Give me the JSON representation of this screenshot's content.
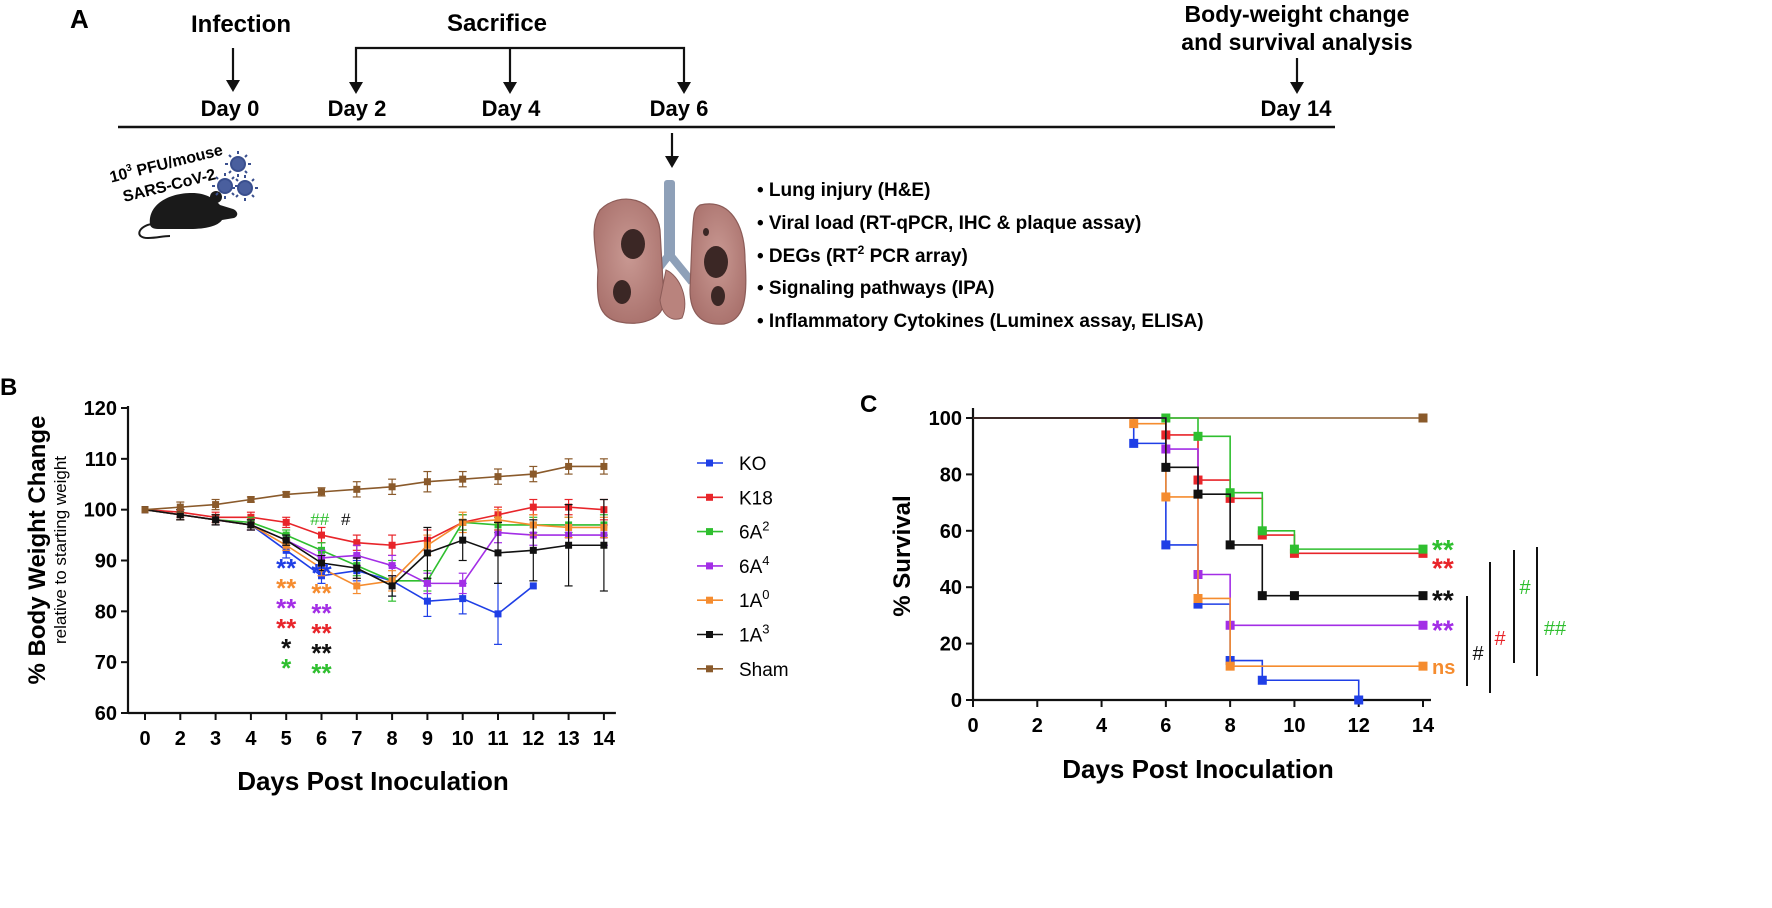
{
  "panelA": {
    "label": "A",
    "events": {
      "infection": "Infection",
      "sacrifice": "Sacrifice",
      "bw1": "Body-weight change",
      "bw2": "and survival analysis"
    },
    "days": [
      "Day 0",
      "Day 2",
      "Day 4",
      "Day 6",
      "Day 14"
    ],
    "dose_base": "10",
    "dose_sup": "3",
    "dose_rest": " PFU/mouse",
    "virus": "SARS-CoV-2",
    "analyses": [
      {
        "text": "• Lung injury (H&E)",
        "sup": "",
        "tail": ""
      },
      {
        "text": "• Viral load (RT-qPCR, IHC & plaque assay)",
        "sup": "",
        "tail": ""
      },
      {
        "text": "• DEGs (RT",
        "sup": "2",
        "tail": " PCR array)"
      },
      {
        "text": "• Signaling pathways (IPA)",
        "sup": "",
        "tail": ""
      },
      {
        "text": "• Inflammatory Cytokines (Luminex assay, ELISA)",
        "sup": "",
        "tail": ""
      }
    ]
  },
  "colors": {
    "KO": "#1f3fe6",
    "K18": "#e8252a",
    "6A2": "#2fbf2f",
    "6A4": "#a32ee6",
    "1A0": "#f58c2f",
    "1A3": "#111111",
    "Sham": "#8a5a2b"
  },
  "chart_data": [
    {
      "panel": "B",
      "type": "line",
      "title": "",
      "xlabel": "Days Post Inoculation",
      "ylabel": "% Body Weight Change",
      "ylabel_sub": "relative to starting weight",
      "ylim": [
        60,
        120
      ],
      "yticks": [
        "60",
        "70",
        "80",
        "90",
        "100",
        "110",
        "120"
      ],
      "x": [
        0,
        2,
        3,
        4,
        5,
        6,
        7,
        8,
        9,
        10,
        11,
        12,
        13,
        14
      ],
      "xticks": [
        "0",
        "2",
        "3",
        "4",
        "5",
        "6",
        "7",
        "8",
        "9",
        "10",
        "11",
        "12",
        "13",
        "14"
      ],
      "series": [
        {
          "name": "KO",
          "sup": "",
          "key": "KO",
          "values": [
            100,
            99,
            98,
            97,
            92,
            87,
            88,
            86,
            82,
            82.5,
            79.5,
            85,
            null,
            null
          ],
          "err": [
            0,
            1,
            1,
            1,
            1.5,
            1.5,
            2,
            3,
            3,
            3,
            6,
            0,
            0,
            0
          ]
        },
        {
          "name": "K18",
          "sup": "",
          "key": "K18",
          "values": [
            100,
            99.5,
            98.5,
            98.5,
            97.5,
            95,
            93.5,
            93,
            94,
            97.5,
            99,
            100.5,
            100.5,
            100
          ],
          "err": [
            0,
            1,
            1,
            1,
            1,
            1.5,
            1.5,
            2,
            2,
            1.5,
            1.5,
            1.5,
            1.5,
            2
          ]
        },
        {
          "name": "6A",
          "sup": "2",
          "key": "6A2",
          "values": [
            100,
            99,
            98,
            97.5,
            95,
            92,
            89,
            86,
            86,
            97.5,
            97,
            97,
            97,
            97
          ],
          "err": [
            0,
            1,
            1,
            1,
            1,
            1.5,
            2,
            4,
            2,
            1.5,
            1.5,
            1.5,
            1.5,
            2
          ]
        },
        {
          "name": "6A",
          "sup": "4",
          "key": "6A4",
          "values": [
            100,
            99,
            98,
            97,
            94,
            90.5,
            91,
            89,
            85.5,
            85.5,
            95.5,
            95,
            95,
            95
          ],
          "err": [
            0,
            1,
            1,
            1,
            1,
            1.5,
            2,
            2,
            2,
            2,
            2,
            2,
            2,
            2
          ]
        },
        {
          "name": "1A",
          "sup": "0",
          "key": "1A0",
          "values": [
            100,
            99,
            98,
            97,
            93,
            88.5,
            85,
            86,
            93,
            97.5,
            98,
            97,
            96.5,
            96.5
          ],
          "err": [
            0,
            1,
            1,
            1,
            1,
            1.5,
            1.5,
            2,
            2,
            2,
            2,
            2,
            2,
            2
          ]
        },
        {
          "name": "1A",
          "sup": "3",
          "key": "1A3",
          "values": [
            100,
            99,
            98,
            97,
            94,
            89.5,
            88.5,
            85,
            91.5,
            94,
            91.5,
            92,
            93,
            93
          ],
          "err": [
            0,
            1,
            1,
            1,
            1,
            1.5,
            2,
            2,
            5,
            4,
            6,
            6,
            8,
            9
          ]
        },
        {
          "name": "Sham",
          "sup": "",
          "key": "Sham",
          "values": [
            100,
            100.5,
            101,
            102,
            103,
            103.5,
            104,
            104.5,
            105.5,
            106,
            106.5,
            107,
            108.5,
            108.5
          ],
          "err": [
            0,
            1,
            1,
            0.5,
            0.5,
            0.8,
            1.5,
            1.5,
            2,
            1.5,
            1.5,
            1.5,
            1.5,
            1.5
          ]
        }
      ],
      "annotations": {
        "day5": [
          {
            "text": "**",
            "key": "KO"
          },
          {
            "text": "**",
            "key": "1A0"
          },
          {
            "text": "**",
            "key": "6A4"
          },
          {
            "text": "**",
            "key": "K18"
          },
          {
            "text": "*",
            "key": "1A3"
          },
          {
            "text": "*",
            "key": "6A2"
          }
        ],
        "day6": [
          {
            "text": "**",
            "key": "KO"
          },
          {
            "text": "**",
            "key": "1A0"
          },
          {
            "text": "**",
            "key": "6A4"
          },
          {
            "text": "**",
            "key": "K18"
          },
          {
            "text": "**",
            "key": "1A3"
          },
          {
            "text": "**",
            "key": "6A2"
          }
        ],
        "hash_green": "##",
        "hash_black": "#"
      }
    },
    {
      "panel": "C",
      "type": "line",
      "subtype": "survival-step",
      "title": "",
      "xlabel": "Days Post Inoculation",
      "ylabel": "% Survival",
      "ylim": [
        0,
        100
      ],
      "xlim": [
        0,
        14
      ],
      "yticks": [
        "0",
        "20",
        "40",
        "60",
        "80",
        "100"
      ],
      "xticks": [
        "0",
        "2",
        "4",
        "6",
        "8",
        "10",
        "12",
        "14"
      ],
      "series": [
        {
          "name": "Sham",
          "key": "Sham",
          "steps": [
            [
              0,
              100
            ],
            [
              14,
              100
            ]
          ],
          "markers": [
            [
              14,
              100
            ]
          ]
        },
        {
          "name": "KO",
          "key": "KO",
          "steps": [
            [
              0,
              100
            ],
            [
              5,
              100
            ],
            [
              5,
              91
            ],
            [
              6,
              91
            ],
            [
              6,
              55
            ],
            [
              7,
              55
            ],
            [
              7,
              34
            ],
            [
              8,
              34
            ],
            [
              8,
              14
            ],
            [
              9,
              14
            ],
            [
              9,
              7
            ],
            [
              12,
              7
            ],
            [
              12,
              0
            ]
          ],
          "markers": [
            [
              5,
              91
            ],
            [
              6,
              55
            ],
            [
              7,
              34
            ],
            [
              8,
              14
            ],
            [
              9,
              7
            ],
            [
              12,
              0
            ]
          ]
        },
        {
          "name": "K18",
          "key": "K18",
          "steps": [
            [
              0,
              100
            ],
            [
              6,
              100
            ],
            [
              6,
              94
            ],
            [
              7,
              94
            ],
            [
              7,
              78
            ],
            [
              8,
              78
            ],
            [
              8,
              71.5
            ],
            [
              9,
              71.5
            ],
            [
              9,
              58.5
            ],
            [
              10,
              58.5
            ],
            [
              10,
              52
            ],
            [
              14,
              52
            ]
          ],
          "markers": [
            [
              6,
              94
            ],
            [
              7,
              78
            ],
            [
              8,
              71.5
            ],
            [
              9,
              58.5
            ],
            [
              10,
              52
            ],
            [
              14,
              52
            ]
          ]
        },
        {
          "name": "6A2",
          "key": "6A2",
          "steps": [
            [
              0,
              100
            ],
            [
              6,
              100
            ],
            [
              7,
              100
            ],
            [
              7,
              93.5
            ],
            [
              8,
              93.5
            ],
            [
              8,
              73.5
            ],
            [
              9,
              73.5
            ],
            [
              9,
              60
            ],
            [
              10,
              60
            ],
            [
              10,
              53.5
            ],
            [
              14,
              53.5
            ]
          ],
          "markers": [
            [
              6,
              100
            ],
            [
              7,
              93.5
            ],
            [
              8,
              73.5
            ],
            [
              9,
              60
            ],
            [
              10,
              53.5
            ],
            [
              14,
              53.5
            ]
          ]
        },
        {
          "name": "6A4",
          "key": "6A4",
          "steps": [
            [
              0,
              100
            ],
            [
              6,
              100
            ],
            [
              6,
              89
            ],
            [
              7,
              89
            ],
            [
              7,
              44.5
            ],
            [
              8,
              44.5
            ],
            [
              8,
              26.5
            ],
            [
              14,
              26.5
            ]
          ],
          "markers": [
            [
              6,
              89
            ],
            [
              7,
              44.5
            ],
            [
              8,
              26.5
            ],
            [
              14,
              26.5
            ]
          ]
        },
        {
          "name": "1A0",
          "key": "1A0",
          "steps": [
            [
              0,
              100
            ],
            [
              5,
              100
            ],
            [
              5,
              98
            ],
            [
              6,
              98
            ],
            [
              6,
              72
            ],
            [
              7,
              72
            ],
            [
              7,
              36
            ],
            [
              8,
              36
            ],
            [
              8,
              12
            ],
            [
              14,
              12
            ]
          ],
          "markers": [
            [
              5,
              98
            ],
            [
              6,
              72
            ],
            [
              7,
              36
            ],
            [
              8,
              12
            ],
            [
              14,
              12
            ]
          ]
        },
        {
          "name": "1A3",
          "key": "1A3",
          "steps": [
            [
              0,
              100
            ],
            [
              6,
              100
            ],
            [
              6,
              82.5
            ],
            [
              7,
              82.5
            ],
            [
              7,
              73
            ],
            [
              8,
              73
            ],
            [
              8,
              55
            ],
            [
              9,
              55
            ],
            [
              9,
              37
            ],
            [
              14,
              37
            ]
          ],
          "markers": [
            [
              6,
              82.5
            ],
            [
              7,
              73
            ],
            [
              8,
              55
            ],
            [
              9,
              37
            ],
            [
              10,
              37
            ],
            [
              14,
              37
            ]
          ]
        }
      ],
      "significance": [
        {
          "text": "**",
          "key": "6A2"
        },
        {
          "text": "**",
          "key": "K18"
        },
        {
          "text": "**",
          "key": "1A3"
        },
        {
          "text": "**",
          "key": "6A4"
        },
        {
          "text": "ns",
          "key": "1A0"
        }
      ],
      "brackets": [
        {
          "text": "#",
          "key": "1A3"
        },
        {
          "text": "#",
          "key": "K18"
        },
        {
          "text": "#",
          "key": "6A2"
        },
        {
          "text": "##",
          "key": "6A2"
        }
      ]
    }
  ],
  "panelB_label": "B",
  "panelC_label": "C"
}
